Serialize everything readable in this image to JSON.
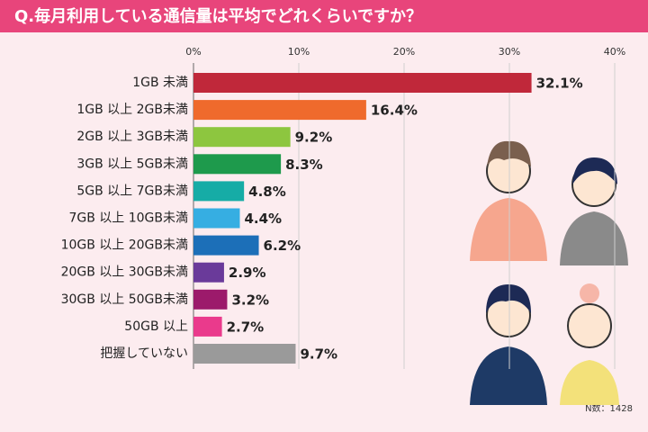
{
  "chart_data": {
    "type": "bar",
    "orientation": "horizontal",
    "title": "Q.毎月利用している通信量は平均でどれくらいですか？",
    "categories": [
      "1GB 未満",
      "1GB 以上 2GB未満",
      "2GB 以上 3GB未満",
      "3GB 以上 5GB未満",
      "5GB 以上 7GB未満",
      "7GB 以上 10GB未満",
      "10GB 以上 20GB未満",
      "20GB 以上 30GB未満",
      "30GB 以上 50GB未満",
      "50GB 以上",
      "把握していない"
    ],
    "values": [
      32.1,
      16.4,
      9.2,
      8.3,
      4.8,
      4.4,
      6.2,
      2.9,
      3.2,
      2.7,
      9.7
    ],
    "value_labels": [
      "32.1%",
      "16.4%",
      "9.2%",
      "8.3%",
      "4.8%",
      "4.4%",
      "6.2%",
      "2.9%",
      "3.2%",
      "2.7%",
      "9.7%"
    ],
    "colors": [
      "#c0283a",
      "#ef6a2c",
      "#8dc63f",
      "#1e9a4c",
      "#16aca6",
      "#36aee2",
      "#1c6fb8",
      "#6a3a9a",
      "#9c1a6b",
      "#ea3a8c",
      "#9a9a9a"
    ],
    "xlim": [
      0,
      40
    ],
    "xticks": [
      {
        "value": 0,
        "label": "0%"
      },
      {
        "value": 10,
        "label": "10%"
      },
      {
        "value": 20,
        "label": "20%"
      },
      {
        "value": 30,
        "label": "30%"
      },
      {
        "value": 40,
        "label": "40%"
      }
    ],
    "grid": true,
    "note": "N数：1428"
  }
}
